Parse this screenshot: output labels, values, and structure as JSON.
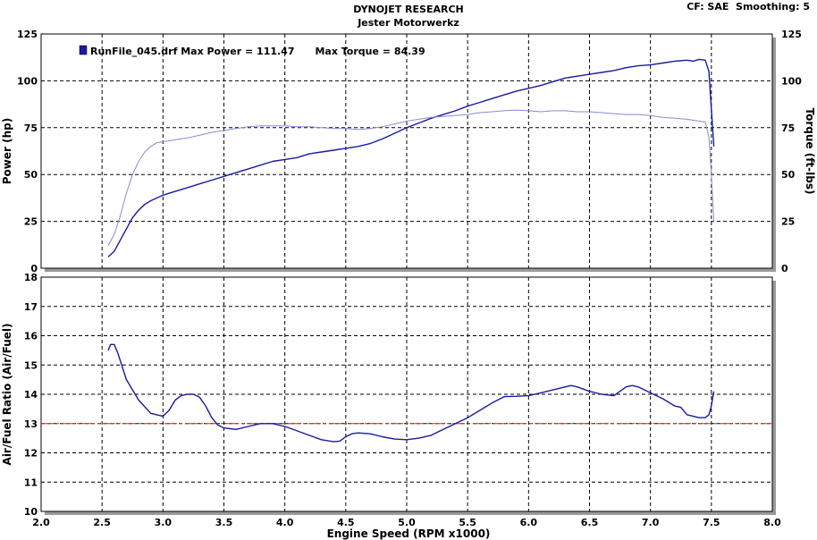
{
  "header": {
    "title": "DYNOJET RESEARCH",
    "subtitle": "Jester Motorwerkz",
    "settings": "CF: SAE  Smoothing: 5"
  },
  "legend": {
    "text": "RunFile_045.drf Max Power = 111.47      Max Torque = 84.39",
    "swatch_color": "#1a1aa0"
  },
  "chart_data": [
    {
      "type": "line",
      "name": "power-torque",
      "xlabel": "Engine Speed (RPM x1000)",
      "ylabel": "Power (hp)",
      "y2label": "Torque (ft-lbs)",
      "xlim": [
        2.0,
        8.0
      ],
      "ylim": [
        0,
        125
      ],
      "y2lim": [
        0,
        125
      ],
      "yticks": [
        0,
        25,
        50,
        75,
        100,
        125
      ],
      "grid": true,
      "legend_position": "top-left",
      "series": [
        {
          "color": "#1a1aa0",
          "x": [
            2.55,
            2.6,
            2.65,
            2.7,
            2.75,
            2.8,
            2.85,
            2.9,
            3.0,
            3.1,
            3.2,
            3.3,
            3.4,
            3.5,
            3.6,
            3.7,
            3.8,
            3.9,
            4.0,
            4.1,
            4.2,
            4.3,
            4.4,
            4.5,
            4.6,
            4.7,
            4.8,
            4.9,
            5.0,
            5.1,
            5.2,
            5.3,
            5.4,
            5.5,
            5.6,
            5.7,
            5.8,
            5.9,
            6.0,
            6.1,
            6.2,
            6.3,
            6.4,
            6.5,
            6.6,
            6.7,
            6.8,
            6.9,
            7.0,
            7.1,
            7.2,
            7.3,
            7.35,
            7.4,
            7.45,
            7.48,
            7.5,
            7.52
          ],
          "values": [
            6,
            9,
            15,
            21,
            27,
            31,
            34,
            36,
            39,
            41,
            43,
            45,
            47,
            49,
            51,
            53,
            55,
            57,
            58,
            59,
            61,
            62,
            63,
            64,
            65,
            66.5,
            69,
            72,
            75,
            77.5,
            80,
            82,
            84,
            86.5,
            88.5,
            90.5,
            92.5,
            94.5,
            96,
            97.5,
            99.5,
            101.5,
            102.5,
            103.5,
            104.5,
            105.5,
            107,
            108,
            108.5,
            109.5,
            110.5,
            111,
            110.5,
            111.47,
            111,
            105,
            85,
            65
          ]
        },
        {
          "color": "#8a8ad8",
          "x": [
            2.55,
            2.6,
            2.65,
            2.7,
            2.75,
            2.8,
            2.85,
            2.9,
            2.95,
            3.0,
            3.1,
            3.2,
            3.3,
            3.4,
            3.5,
            3.6,
            3.7,
            3.8,
            3.9,
            4.0,
            4.1,
            4.2,
            4.3,
            4.4,
            4.5,
            4.6,
            4.7,
            4.8,
            4.9,
            5.0,
            5.1,
            5.2,
            5.3,
            5.4,
            5.5,
            5.6,
            5.7,
            5.8,
            5.9,
            6.0,
            6.1,
            6.2,
            6.3,
            6.4,
            6.5,
            6.6,
            6.7,
            6.8,
            6.9,
            7.0,
            7.1,
            7.2,
            7.3,
            7.4,
            7.45,
            7.48,
            7.5,
            7.52
          ],
          "values": [
            12,
            18,
            28,
            40,
            50,
            57,
            62,
            65,
            67,
            67.5,
            68.5,
            69.5,
            71,
            72.5,
            73.5,
            74.5,
            75.5,
            76,
            76,
            76,
            75.5,
            75.5,
            75,
            74.5,
            74.5,
            74,
            74.5,
            75.5,
            77,
            78.5,
            79.5,
            80.5,
            81,
            81.5,
            82,
            83,
            83.5,
            84,
            84.39,
            84,
            83.5,
            84,
            84,
            83.5,
            83.5,
            83,
            82.5,
            82,
            82,
            81.5,
            80.5,
            80,
            79.5,
            78.5,
            78,
            70,
            50,
            25
          ]
        }
      ]
    },
    {
      "type": "line",
      "name": "air-fuel",
      "xlabel": "Engine Speed (RPM x1000)",
      "ylabel": "Air/Fuel Ratio (Air/Fuel)",
      "xlim": [
        2.0,
        8.0
      ],
      "ylim": [
        10,
        18
      ],
      "yticks": [
        10,
        11,
        12,
        13,
        14,
        15,
        16,
        17,
        18
      ],
      "xticks": [
        "2.0",
        "2.5",
        "3.0",
        "3.5",
        "4.0",
        "4.5",
        "5.0",
        "5.5",
        "6.0",
        "6.5",
        "7.0",
        "7.5",
        "8.0"
      ],
      "grid": true,
      "reference_line": {
        "y": 13.0,
        "color": "#e02020"
      },
      "series": [
        {
          "color": "#1a1aa0",
          "x": [
            2.55,
            2.57,
            2.6,
            2.63,
            2.7,
            2.8,
            2.9,
            3.0,
            3.05,
            3.1,
            3.15,
            3.2,
            3.25,
            3.3,
            3.35,
            3.4,
            3.45,
            3.5,
            3.6,
            3.7,
            3.8,
            3.9,
            4.0,
            4.1,
            4.2,
            4.3,
            4.4,
            4.45,
            4.5,
            4.55,
            4.6,
            4.7,
            4.8,
            4.9,
            5.0,
            5.1,
            5.2,
            5.3,
            5.4,
            5.5,
            5.6,
            5.7,
            5.8,
            5.9,
            6.0,
            6.1,
            6.2,
            6.3,
            6.35,
            6.4,
            6.5,
            6.6,
            6.7,
            6.8,
            6.85,
            6.9,
            7.0,
            7.1,
            7.2,
            7.25,
            7.3,
            7.35,
            7.4,
            7.45,
            7.48,
            7.5,
            7.52
          ],
          "values": [
            15.5,
            15.7,
            15.7,
            15.4,
            14.5,
            13.8,
            13.35,
            13.25,
            13.45,
            13.8,
            13.95,
            14.0,
            14.0,
            13.9,
            13.6,
            13.2,
            12.95,
            12.85,
            12.8,
            12.9,
            13.0,
            13.0,
            12.9,
            12.75,
            12.6,
            12.45,
            12.38,
            12.4,
            12.55,
            12.65,
            12.68,
            12.65,
            12.55,
            12.47,
            12.45,
            12.5,
            12.6,
            12.8,
            13.0,
            13.2,
            13.45,
            13.7,
            13.92,
            13.93,
            13.95,
            14.05,
            14.15,
            14.25,
            14.3,
            14.25,
            14.1,
            14.0,
            13.95,
            14.25,
            14.3,
            14.25,
            14.05,
            13.85,
            13.6,
            13.55,
            13.3,
            13.25,
            13.2,
            13.2,
            13.3,
            13.6,
            14.1
          ]
        }
      ]
    }
  ]
}
